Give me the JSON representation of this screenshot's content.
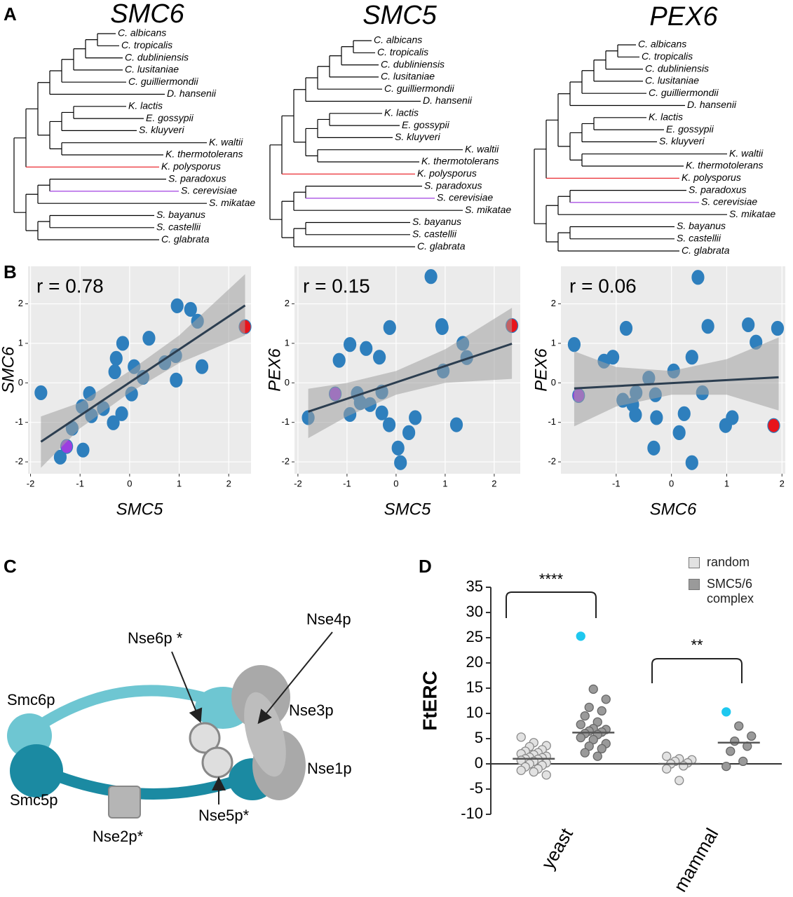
{
  "panel_labels": [
    "A",
    "B",
    "C",
    "D"
  ],
  "trees": [
    {
      "title": "SMC6"
    },
    {
      "title": "SMC5"
    },
    {
      "title": "PEX6"
    }
  ],
  "species": [
    {
      "name": "C. albicans",
      "color": "#000000"
    },
    {
      "name": "C. tropicalis",
      "color": "#000000"
    },
    {
      "name": "C. dubliniensis",
      "color": "#000000"
    },
    {
      "name": "C. lusitaniae",
      "color": "#000000"
    },
    {
      "name": "C. guilliermondii",
      "color": "#000000"
    },
    {
      "name": "D. hansenii",
      "color": "#000000"
    },
    {
      "name": "K. lactis",
      "color": "#000000"
    },
    {
      "name": "E. gossypii",
      "color": "#000000"
    },
    {
      "name": "S. kluyveri",
      "color": "#000000"
    },
    {
      "name": "K. waltii",
      "color": "#000000"
    },
    {
      "name": "K. thermotolerans",
      "color": "#000000"
    },
    {
      "name": "K. polysporus",
      "color": "#e8141b"
    },
    {
      "name": "S. paradoxus",
      "color": "#000000"
    },
    {
      "name": "S. cerevisiae",
      "color": "#a040e0"
    },
    {
      "name": "S. mikatae",
      "color": "#000000"
    },
    {
      "name": "S. bayanus",
      "color": "#000000"
    },
    {
      "name": "S. castellii",
      "color": "#000000"
    },
    {
      "name": "C. glabrata",
      "color": "#000000"
    }
  ],
  "chart_data": [
    {
      "type": "scatter",
      "annotation": "r = 0.78",
      "xlabel": "SMC5",
      "ylabel": "SMC6",
      "x": [
        -1.79,
        -1.4,
        -1.27,
        -1.16,
        -0.94,
        -0.96,
        -0.81,
        -0.77,
        -0.53,
        -0.33,
        -0.16,
        -0.3,
        -0.27,
        -0.14,
        0.04,
        0.09,
        0.27,
        0.39,
        0.71,
        0.93,
        0.94,
        0.96,
        1.23,
        1.37,
        1.46,
        2.33
      ],
      "values": [
        -0.25,
        -1.88,
        -1.61,
        -1.15,
        -1.7,
        -0.6,
        -0.27,
        -0.83,
        -0.65,
        -1.01,
        -0.78,
        0.28,
        0.62,
        1.0,
        -0.28,
        0.41,
        0.14,
        1.13,
        0.51,
        0.69,
        0.07,
        1.95,
        1.86,
        1.56,
        0.41,
        1.42
      ],
      "color": "#2e7fbd",
      "marked": [
        {
          "index": 2,
          "color": "#9b3fe0"
        },
        {
          "index": 25,
          "color": "#e8141b"
        }
      ],
      "fit": {
        "x": [
          -1.79,
          2.33
        ],
        "values": [
          -1.49,
          1.96
        ],
        "color": "#2c3e50"
      },
      "band": {
        "x": [
          -1.79,
          -1,
          0,
          1,
          2.33
        ],
        "upper": [
          -0.85,
          -0.5,
          0.3,
          1.2,
          2.75
        ],
        "lower": [
          -2.15,
          -1.15,
          -0.25,
          0.5,
          1.2
        ],
        "color": "#a0a0a0"
      },
      "xlim": [
        -2.05,
        2.45
      ],
      "ylim": [
        -2.3,
        2.95
      ],
      "xticks": [
        -2,
        -1,
        0,
        1,
        2
      ],
      "yticks": [
        -2,
        -1,
        0,
        1,
        2
      ],
      "grid": true
    },
    {
      "type": "scatter",
      "annotation": "r = 0.15",
      "xlabel": "SMC5",
      "ylabel": "PEX6",
      "x": [
        -1.79,
        -1.24,
        -1.16,
        -0.94,
        -0.94,
        -0.79,
        -0.73,
        -0.53,
        -0.61,
        -0.34,
        -0.29,
        -0.29,
        -0.13,
        -0.14,
        0.04,
        0.09,
        0.26,
        0.39,
        0.71,
        0.93,
        0.94,
        0.96,
        1.23,
        1.36,
        1.44,
        2.36
      ],
      "values": [
        -0.88,
        -0.28,
        0.57,
        0.97,
        -0.8,
        -0.27,
        -0.5,
        -0.55,
        0.87,
        0.65,
        -0.23,
        -0.76,
        1.4,
        -1.06,
        -1.65,
        -2.02,
        -1.26,
        -0.88,
        2.69,
        1.45,
        1.4,
        0.3,
        -1.06,
        1.0,
        0.64,
        1.45
      ],
      "color": "#2e7fbd",
      "marked": [
        {
          "index": 1,
          "color": "#9b3fe0"
        },
        {
          "index": 25,
          "color": "#e8141b"
        }
      ],
      "fit": {
        "x": [
          -1.79,
          2.36
        ],
        "values": [
          -0.73,
          0.99
        ],
        "color": "#2c3e50"
      },
      "band": {
        "x": [
          -1.79,
          -1,
          0,
          1,
          2.36
        ],
        "upper": [
          -0.15,
          0.0,
          0.3,
          0.85,
          1.9
        ],
        "lower": [
          -1.4,
          -0.85,
          -0.3,
          0.0,
          0.1
        ],
        "color": "#a0a0a0"
      },
      "xlim": [
        -2.07,
        2.53
      ],
      "ylim": [
        -2.3,
        2.95
      ],
      "xticks": [
        -2,
        -1,
        0,
        1,
        2
      ],
      "yticks": [
        -2,
        -1,
        0,
        1,
        2
      ],
      "grid": true
    },
    {
      "type": "scatter",
      "annotation": "r = 0.06",
      "xlabel": "SMC6",
      "ylabel": "PEX6",
      "x": [
        -1.76,
        -1.68,
        -1.22,
        -1.06,
        -0.88,
        -0.82,
        -0.7,
        -0.64,
        -0.65,
        -0.41,
        -0.29,
        -0.32,
        -0.27,
        0.04,
        0.14,
        0.23,
        0.37,
        0.37,
        0.48,
        0.56,
        0.66,
        0.98,
        1.1,
        1.39,
        1.53,
        1.92,
        1.85
      ],
      "values": [
        0.97,
        -0.32,
        0.55,
        0.65,
        -0.44,
        1.38,
        -0.55,
        -0.25,
        -0.81,
        0.12,
        -0.3,
        -1.65,
        -0.88,
        0.3,
        -1.26,
        -0.78,
        0.65,
        -2.02,
        2.67,
        -0.25,
        1.43,
        -1.08,
        -0.88,
        1.47,
        1.03,
        1.38,
        -1.08
      ],
      "color": "#2e7fbd",
      "marked": [
        {
          "index": 1,
          "color": "#9b3fe0"
        },
        {
          "index": 26,
          "color": "#e8141b"
        }
      ],
      "fit": {
        "x": [
          -1.76,
          1.94
        ],
        "values": [
          -0.14,
          0.14
        ],
        "color": "#2c3e50"
      },
      "band": {
        "x": [
          -1.76,
          -1,
          0,
          1,
          1.94
        ],
        "upper": [
          0.8,
          0.4,
          0.3,
          0.6,
          1.15
        ],
        "lower": [
          -1.1,
          -0.6,
          -0.3,
          -0.3,
          -0.7
        ],
        "color": "#a0a0a0"
      },
      "xlim": [
        -2.0,
        2.06
      ],
      "ylim": [
        -2.3,
        2.95
      ],
      "xticks": [
        -1,
        0,
        1,
        2
      ],
      "yticks": [
        -2,
        -1,
        0,
        1,
        2
      ],
      "grid": true
    },
    {
      "type": "dot",
      "ylabel": "FtERC",
      "categories": [
        "yeast",
        "mammal"
      ],
      "ylim": [
        -10,
        35
      ],
      "yticks": [
        -10,
        -5,
        0,
        5,
        10,
        15,
        20,
        25,
        30,
        35
      ],
      "annotations": [
        "****",
        "**"
      ],
      "series": [
        {
          "name": "random",
          "color": "#e2e2e2",
          "stroke": "#8a8a8a",
          "values": [
            [
              5.3,
              4.2,
              3.6,
              3.4,
              2.8,
              2.5,
              2.2,
              2.0,
              1.8,
              1.5,
              1.3,
              1.2,
              1.0,
              0.9,
              0.7,
              0.5,
              0.2,
              0,
              -0.3,
              -0.6,
              -1.0,
              -1.3,
              -1.6,
              -2.2
            ],
            [
              1.5,
              1.0,
              0.8,
              0.5,
              0.2,
              0,
              -0.4,
              -1.0,
              -3.3
            ]
          ],
          "medians": [
            1.0,
            0.0
          ]
        },
        {
          "name": "SMC5/6 complex",
          "color": "#9a9a9a",
          "stroke": "#666666",
          "values": [
            [
              25.3,
              14.8,
              12.8,
              11.2,
              10.5,
              9.5,
              8.3,
              7.8,
              7.0,
              6.8,
              6.5,
              6.3,
              6.0,
              5.8,
              5.2,
              4.8,
              4.0,
              3.5,
              3.0,
              2.2,
              1.5
            ],
            [
              10.3,
              7.5,
              5.5,
              4.5,
              3.5,
              2.5,
              0.5,
              -0.5
            ]
          ],
          "medians": [
            6.2,
            4.2
          ],
          "marked": [
            {
              "group": 0,
              "index": 0,
              "color": "#1ec8ef"
            },
            {
              "group": 1,
              "index": 0,
              "color": "#1ec8ef"
            }
          ]
        }
      ]
    }
  ],
  "diagram": {
    "labels": [
      "Smc6p",
      "Smc5p",
      "Nse2p*",
      "Nse5p*",
      "Nse6p *",
      "Nse4p",
      "Nse3p",
      "Nse1p"
    ]
  }
}
